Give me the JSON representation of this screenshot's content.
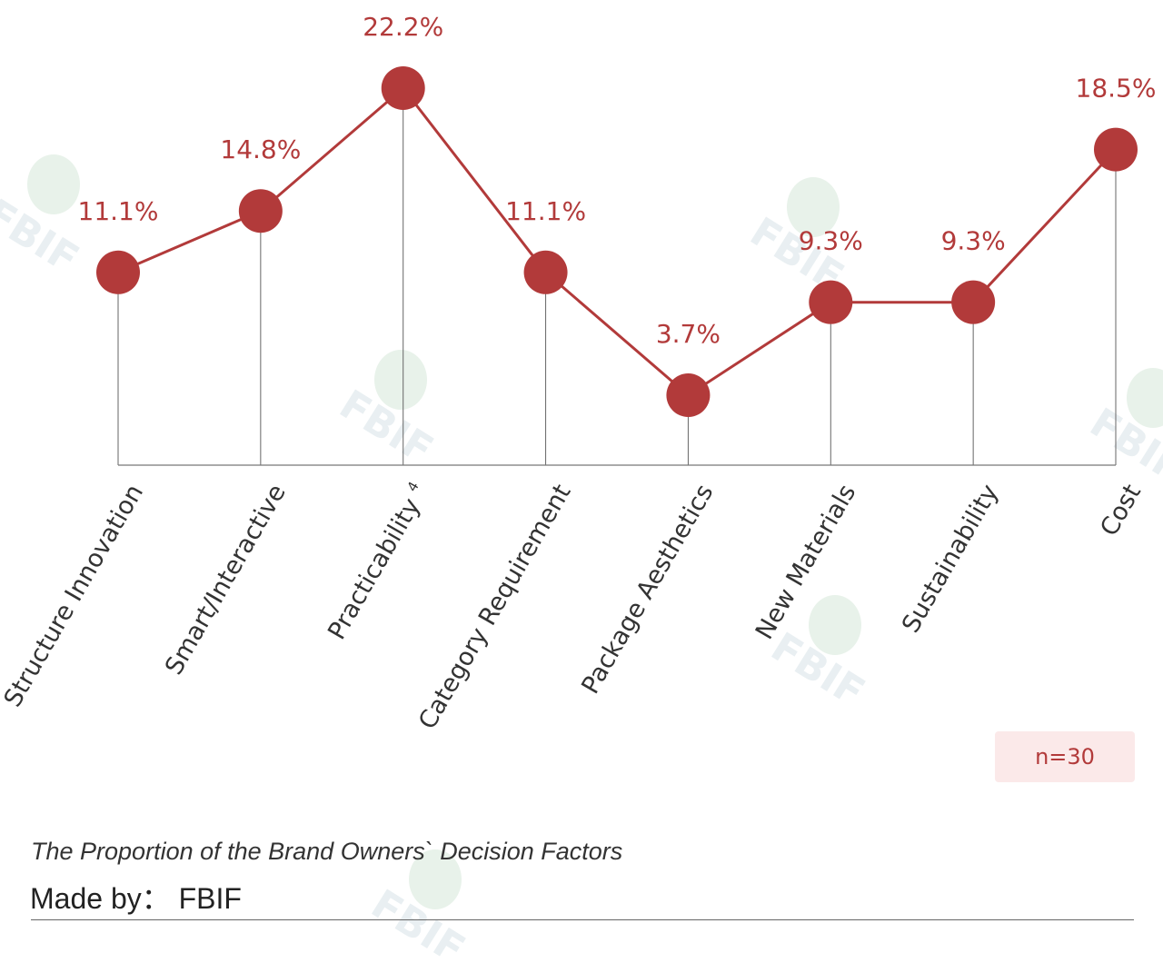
{
  "chart_data": {
    "type": "line",
    "title": "The Proportion of the Brand Owners` Decision Factors",
    "categories": [
      "Structure Innovation",
      "Smart/Interactive",
      "Practicability",
      "Category Requirement",
      "Package Aesthetics",
      "New Materials",
      "Sustainability",
      "Cost"
    ],
    "values": [
      11.1,
      14.8,
      22.2,
      11.1,
      3.7,
      9.3,
      9.3,
      18.5
    ],
    "value_labels": [
      "11.1%",
      "14.8%",
      "22.2%",
      "11.1%",
      "3.7%",
      "9.3%",
      "9.3%",
      "18.5%"
    ],
    "ylim": [
      -2,
      23
    ],
    "xlabel": "",
    "ylabel": "",
    "grid": false,
    "legend": "none",
    "footnote_marker": "4",
    "series_color": "#b23a3a"
  },
  "sample_note": "n=30",
  "caption": "The Proportion of the Brand Owners` Decision Factors",
  "made_by": "Made by： FBIF",
  "watermark_text": "FBIF"
}
